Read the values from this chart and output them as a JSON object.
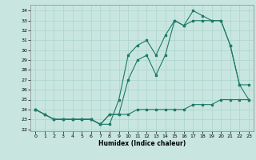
{
  "xlabel": "Humidex (Indice chaleur)",
  "bg_color": "#c8e6df",
  "line_color": "#1e7a68",
  "grid_color": "#aad4cc",
  "x": [
    0,
    1,
    2,
    3,
    4,
    5,
    6,
    7,
    8,
    9,
    10,
    11,
    12,
    13,
    14,
    15,
    16,
    17,
    18,
    19,
    20,
    21,
    22,
    23
  ],
  "y_max": [
    24,
    23.5,
    23,
    23,
    23,
    23,
    23,
    22.5,
    22.5,
    25,
    29.5,
    30.5,
    31,
    29.5,
    31.5,
    33,
    32.5,
    34,
    33.5,
    33,
    33,
    30.5,
    26.5,
    26.5
  ],
  "y_mid": [
    24,
    23.5,
    23,
    23,
    23,
    23,
    23,
    22.5,
    23.5,
    23.5,
    27,
    29,
    29.5,
    27.5,
    29.5,
    33,
    32.5,
    33,
    33,
    33,
    33,
    30.5,
    26.5,
    25
  ],
  "y_min": [
    24,
    23.5,
    23,
    23,
    23,
    23,
    23,
    22.5,
    23.5,
    23.5,
    23.5,
    24,
    24,
    24,
    24,
    24,
    24,
    24.5,
    24.5,
    24.5,
    25,
    25,
    25,
    25
  ],
  "ylim": [
    21.8,
    34.6
  ],
  "xlim": [
    -0.5,
    23.5
  ],
  "yticks": [
    22,
    23,
    24,
    25,
    26,
    27,
    28,
    29,
    30,
    31,
    32,
    33,
    34
  ],
  "xticks": [
    0,
    1,
    2,
    3,
    4,
    5,
    6,
    7,
    8,
    9,
    10,
    11,
    12,
    13,
    14,
    15,
    16,
    17,
    18,
    19,
    20,
    21,
    22,
    23
  ]
}
